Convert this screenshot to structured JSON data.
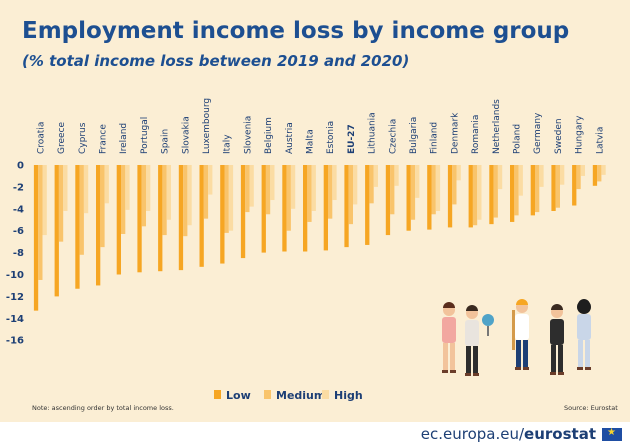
{
  "title": "Employment income loss by income group",
  "subtitle": "(% total income loss between 2019 and 2020)",
  "note": "Note: ascending order by total income loss.",
  "source": "Source:  Eurostat",
  "site": {
    "domain": "ec.europa.eu/",
    "brand": "eurostat"
  },
  "colors": {
    "background": "#fbeed4",
    "low": "#f6a623",
    "medium": "#f9c46b",
    "high": "#fbdca3",
    "title": "#1d4f91"
  },
  "chart_data": {
    "type": "bar",
    "categories": [
      "Croatia",
      "Greece",
      "Cyprus",
      "France",
      "Ireland",
      "Portugal",
      "Spain",
      "Slovakia",
      "Luxembourg",
      "Italy",
      "Slovenia",
      "Belgium",
      "Austria",
      "Malta",
      "Estonia",
      "EU-27",
      "Lithuania",
      "Czechia",
      "Bulgaria",
      "Finland",
      "Denmark",
      "Romania",
      "Netherlands",
      "Poland",
      "Germany",
      "Sweden",
      "Hungary",
      "Latvia"
    ],
    "series": [
      {
        "name": "Low",
        "values": [
          -13.3,
          -12.0,
          -11.3,
          -11.0,
          -10.0,
          -9.8,
          -9.7,
          -9.6,
          -9.3,
          -9.0,
          -8.5,
          -8.0,
          -7.9,
          -7.9,
          -7.8,
          -7.5,
          -7.3,
          -6.4,
          -6.0,
          -5.9,
          -5.7,
          -5.7,
          -5.4,
          -5.2,
          -4.6,
          -4.2,
          -3.7,
          -1.9
        ]
      },
      {
        "name": "Medium",
        "values": [
          -10.5,
          -7.0,
          -8.2,
          -7.5,
          -6.3,
          -5.6,
          -6.4,
          -6.5,
          -4.9,
          -6.2,
          -4.3,
          -4.5,
          -6.0,
          -5.2,
          -4.9,
          -5.4,
          -3.5,
          -4.5,
          -5.0,
          -4.5,
          -3.6,
          -5.5,
          -4.8,
          -4.6,
          -4.3,
          -3.9,
          -2.2,
          -1.5
        ]
      },
      {
        "name": "High",
        "values": [
          -6.4,
          -4.2,
          -4.4,
          -3.5,
          -4.1,
          -4.2,
          -5.0,
          -5.5,
          -2.7,
          -6.0,
          -3.8,
          -3.2,
          -4.0,
          -4.2,
          -3.2,
          -3.6,
          -2.0,
          -1.9,
          -3.0,
          -4.2,
          -1.4,
          -5.0,
          -2.2,
          -2.8,
          -2.0,
          -1.8,
          -1.0,
          -0.9
        ]
      }
    ],
    "y_ticks": [
      0,
      -2,
      -4,
      -6,
      -8,
      -10,
      -12,
      -14,
      -16
    ],
    "ylim": [
      -16,
      0
    ],
    "grid": false,
    "legend": "bottom-center",
    "bold_categories": [
      "EU-27"
    ]
  }
}
